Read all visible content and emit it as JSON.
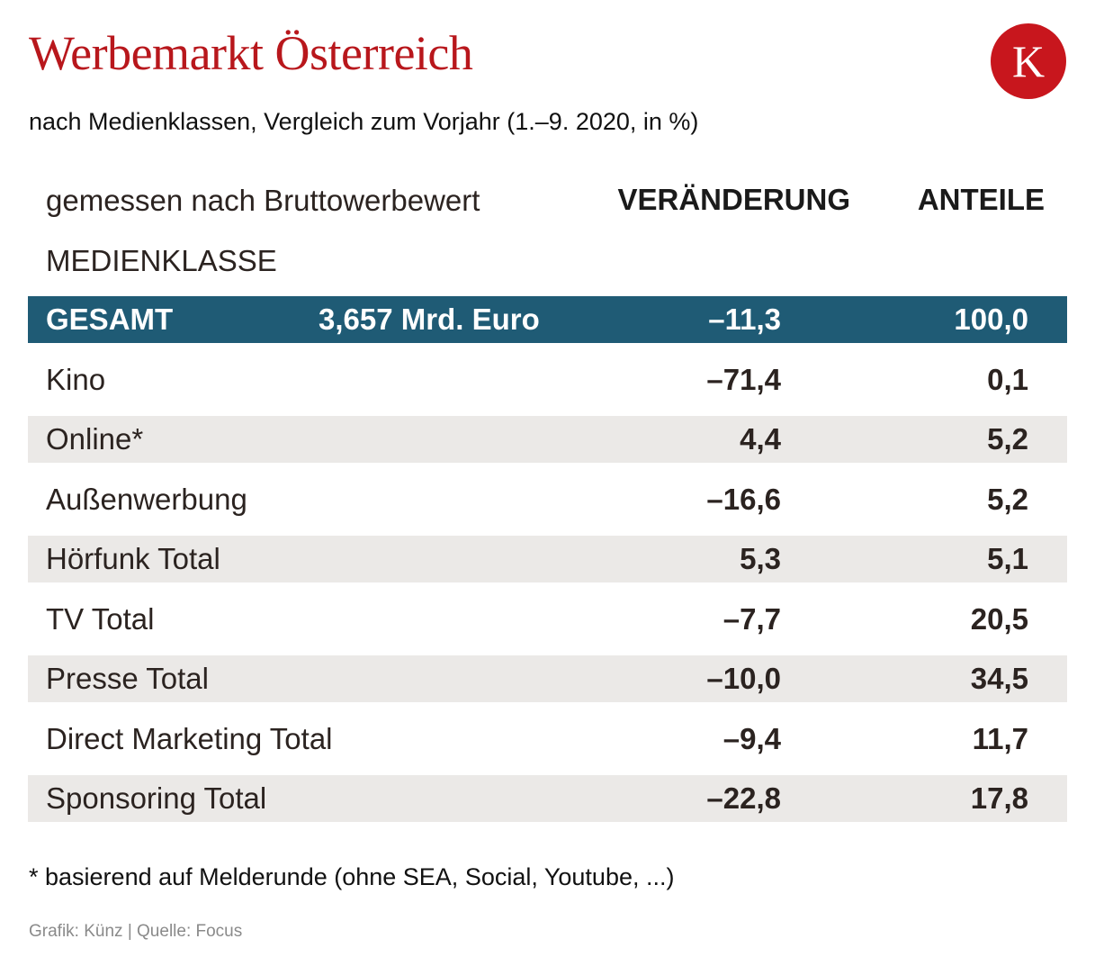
{
  "title": "Werbemarkt Österreich",
  "logo_letter": "K",
  "subtitle": "nach Medienklassen, Vergleich zum Vorjahr (1.–9. 2020, in %)",
  "header": {
    "measure_note": "gemessen nach Bruttowerbewert",
    "change_label": "VERÄNDERUNG",
    "share_label": "ANTEILE",
    "class_label": "MEDIENKLASSE"
  },
  "colors": {
    "title": "#b8171c",
    "logo": "#c8161d",
    "total_row": "#1f5b75",
    "shade_row": "#ebe9e7"
  },
  "chart_data": {
    "type": "table",
    "columns": [
      "MEDIENKLASSE",
      "VERÄNDERUNG",
      "ANTEILE"
    ],
    "total": {
      "label": "GESAMT",
      "extra": "3,657 Mrd. Euro",
      "change": "–11,3",
      "share": "100,0"
    },
    "rows": [
      {
        "label": "Kino",
        "change": "–71,4",
        "share": "0,1"
      },
      {
        "label": "Online*",
        "change": "4,4",
        "share": "5,2"
      },
      {
        "label": "Außenwerbung",
        "change": "–16,6",
        "share": "5,2"
      },
      {
        "label": "Hörfunk Total",
        "change": "5,3",
        "share": "5,1"
      },
      {
        "label": "TV Total",
        "change": "–7,7",
        "share": "20,5"
      },
      {
        "label": "Presse Total",
        "change": "–10,0",
        "share": "34,5"
      },
      {
        "label": "Direct Marketing Total",
        "change": "–9,4",
        "share": "11,7"
      },
      {
        "label": "Sponsoring Total",
        "change": "–22,8",
        "share": "17,8"
      }
    ]
  },
  "footnote": "* basierend auf Melderunde (ohne SEA, Social, Youtube, ...)",
  "source": "Grafik: Künz | Quelle: Focus"
}
